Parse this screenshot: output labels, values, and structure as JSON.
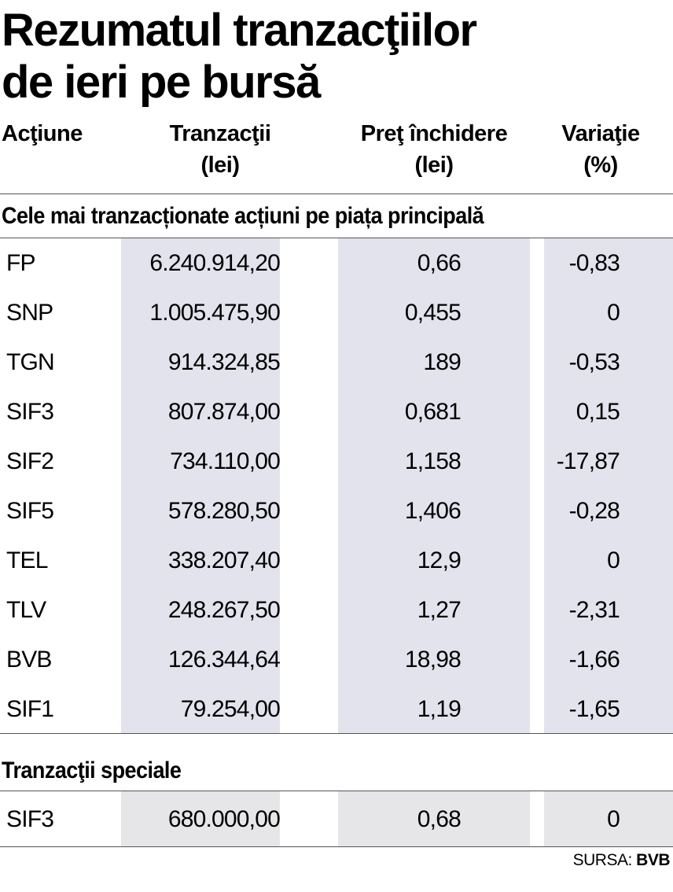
{
  "title": {
    "line1": "Rezumatul tranzacţiilor",
    "line2": "de ieri pe bursă"
  },
  "headers": {
    "actiune": "Acţiune",
    "tranzactii_l1": "Tranzacţii",
    "tranzactii_l2": "(lei)",
    "pret_l1": "Preţ închidere",
    "pret_l2": "(lei)",
    "variatie_l1": "Variaţie",
    "variatie_l2": "(%)"
  },
  "main_section": {
    "title": "Cele mai tranzacționate acțiuni pe piața principală",
    "rows": [
      {
        "symbol": "FP",
        "tranzactii": "6.240.914,20",
        "pret": "0,66",
        "variatie": "-0,83"
      },
      {
        "symbol": "SNP",
        "tranzactii": "1.005.475,90",
        "pret": "0,455",
        "variatie": "0"
      },
      {
        "symbol": "TGN",
        "tranzactii": "914.324,85",
        "pret": "189",
        "variatie": "-0,53"
      },
      {
        "symbol": "SIF3",
        "tranzactii": "807.874,00",
        "pret": "0,681",
        "variatie": "0,15"
      },
      {
        "symbol": "SIF2",
        "tranzactii": "734.110,00",
        "pret": "1,158",
        "variatie": "-17,87"
      },
      {
        "symbol": "SIF5",
        "tranzactii": "578.280,50",
        "pret": "1,406",
        "variatie": "-0,28"
      },
      {
        "symbol": "TEL",
        "tranzactii": "338.207,40",
        "pret": "12,9",
        "variatie": "0"
      },
      {
        "symbol": "TLV",
        "tranzactii": "248.267,50",
        "pret": "1,27",
        "variatie": "-2,31"
      },
      {
        "symbol": "BVB",
        "tranzactii": "126.344,64",
        "pret": "18,98",
        "variatie": "-1,66"
      },
      {
        "symbol": "SIF1",
        "tranzactii": "79.254,00",
        "pret": "1,19",
        "variatie": "-1,65"
      }
    ]
  },
  "special_section": {
    "title": "Tranzacţii speciale",
    "rows": [
      {
        "symbol": "SIF3",
        "tranzactii": "680.000,00",
        "pret": "0,68",
        "variatie": "0"
      }
    ]
  },
  "source": {
    "label": "SURSA:",
    "value": "BVB"
  }
}
